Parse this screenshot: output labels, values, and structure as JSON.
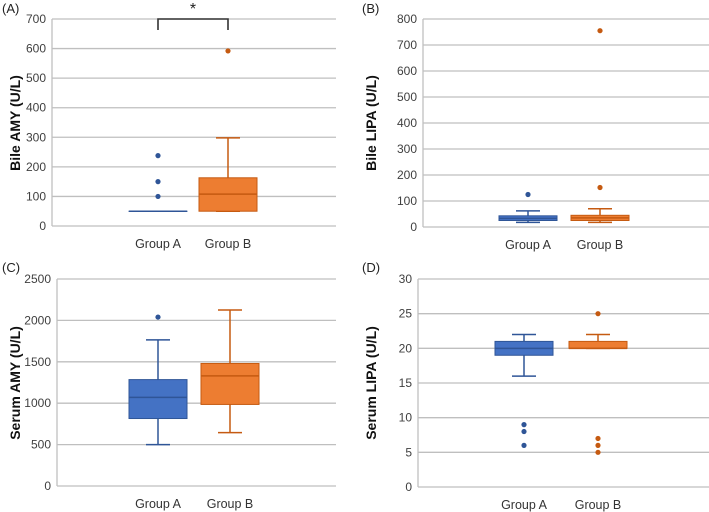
{
  "colors": {
    "group_a": "#4472C4",
    "group_a_edge": "#2F5597",
    "group_b": "#ED7D31",
    "group_b_edge": "#C55A11",
    "grid": "#BFBFBF"
  },
  "chart_data": [
    {
      "type": "box",
      "panel_label": "(A)",
      "ylabel": "Bile AMY (U/L)",
      "ylim": [
        0,
        700
      ],
      "yticks": [
        0,
        100,
        200,
        300,
        400,
        500,
        600,
        700
      ],
      "grid": true,
      "categories": [
        "Group A",
        "Group B"
      ],
      "annotation": "*",
      "boxes": [
        {
          "whisker_low": 50,
          "q1": 50,
          "median": 50,
          "q3": 50,
          "whisker_high": 50,
          "outliers": [
            100,
            150,
            238
          ]
        },
        {
          "whisker_low": 50,
          "q1": 50,
          "median": 108,
          "q3": 163,
          "whisker_high": 298,
          "outliers": [
            592
          ]
        }
      ]
    },
    {
      "type": "box",
      "panel_label": "(B)",
      "ylabel": "Bile LIPA (U/L)",
      "ylim": [
        0,
        800
      ],
      "yticks": [
        0,
        100,
        200,
        300,
        400,
        500,
        600,
        700,
        800
      ],
      "grid": true,
      "categories": [
        "Group A",
        "Group B"
      ],
      "boxes": [
        {
          "whisker_low": 18,
          "q1": 25,
          "median": 33,
          "q3": 43,
          "whisker_high": 62,
          "outliers": [
            125
          ]
        },
        {
          "whisker_low": 18,
          "q1": 25,
          "median": 35,
          "q3": 45,
          "whisker_high": 70,
          "outliers": [
            152,
            755
          ]
        }
      ]
    },
    {
      "type": "box",
      "panel_label": "(C)",
      "ylabel": "Serum AMY (U/L)",
      "ylim": [
        0,
        2500
      ],
      "yticks": [
        0,
        500,
        1000,
        1500,
        2000,
        2500
      ],
      "grid": true,
      "categories": [
        "Group A",
        "Group B"
      ],
      "boxes": [
        {
          "whisker_low": 500,
          "q1": 815,
          "median": 1070,
          "q3": 1285,
          "whisker_high": 1765,
          "outliers": [
            2040
          ]
        },
        {
          "whisker_low": 645,
          "q1": 985,
          "median": 1330,
          "q3": 1480,
          "whisker_high": 2125,
          "outliers": []
        }
      ]
    },
    {
      "type": "box",
      "panel_label": "(D)",
      "ylabel": "Serum LIPA (U/L)",
      "ylim": [
        0,
        30
      ],
      "yticks": [
        0,
        5,
        10,
        15,
        20,
        25,
        30
      ],
      "grid": true,
      "categories": [
        "Group A",
        "Group B"
      ],
      "boxes": [
        {
          "whisker_low": 16,
          "q1": 19,
          "median": 20,
          "q3": 21,
          "whisker_high": 22,
          "outliers": [
            9,
            8,
            6
          ]
        },
        {
          "whisker_low": 20,
          "q1": 20,
          "median": 20,
          "q3": 21,
          "whisker_high": 22,
          "outliers": [
            25,
            7,
            6,
            5
          ]
        }
      ]
    }
  ]
}
